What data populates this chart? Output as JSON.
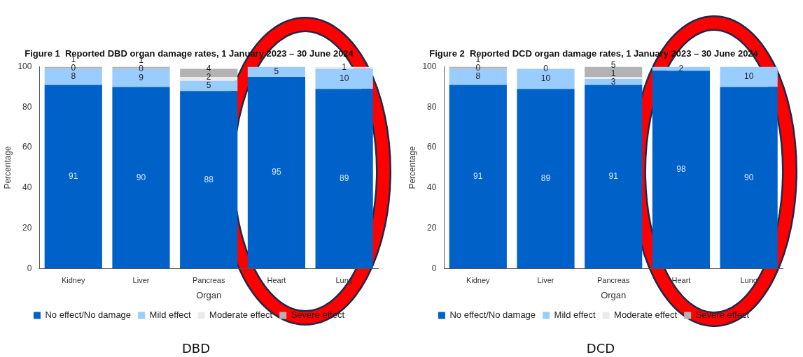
{
  "chart_data": [
    {
      "type": "bar",
      "title": "Figure 1  Reported DBD organ damage rates, 1 January 2023 – 30 June 2024",
      "xlabel": "Organ",
      "ylabel": "Percentage",
      "categories": [
        "Kidney",
        "Liver",
        "Pancreas",
        "Heart",
        "Lung"
      ],
      "stacked": true,
      "ylim": [
        0,
        100
      ],
      "yticks": [
        0,
        20,
        40,
        60,
        80,
        100
      ],
      "legend": "bottom",
      "annotations": [
        "DBD"
      ],
      "series": [
        {
          "name": "No effect/No damage",
          "color": "#0062c9",
          "values": [
            91,
            90,
            88,
            95,
            89
          ],
          "value_labels": [
            "91",
            "90",
            "88",
            "95",
            "89"
          ]
        },
        {
          "name": "Mild effect",
          "color": "#99ccff",
          "values": [
            8,
            9,
            5,
            5,
            10
          ],
          "value_labels": [
            "8",
            "9",
            "5",
            "5",
            "10"
          ]
        },
        {
          "name": "Moderate effect",
          "color": "#ebebeb",
          "values": [
            0,
            0,
            2,
            0,
            1
          ],
          "value_labels": [
            "0",
            "0",
            "2",
            null,
            "1"
          ]
        },
        {
          "name": "Severe effect",
          "color": "#b3b3b3",
          "values": [
            1,
            1,
            4,
            0,
            0
          ],
          "value_labels": [
            "1",
            "1",
            "4",
            null,
            null
          ]
        }
      ]
    },
    {
      "type": "bar",
      "title": "Figure 2  Reported DCD organ damage rates, 1 January 2023 – 30 June 2024",
      "xlabel": "Organ",
      "ylabel": "Percentage",
      "categories": [
        "Kidney",
        "Liver",
        "Pancreas",
        "Heart",
        "Lung"
      ],
      "stacked": true,
      "ylim": [
        0,
        100
      ],
      "yticks": [
        0,
        20,
        40,
        60,
        80,
        100
      ],
      "legend": "bottom",
      "annotations": [
        "DCD"
      ],
      "series": [
        {
          "name": "No effect/No damage",
          "color": "#0062c9",
          "values": [
            91,
            89,
            91,
            98,
            90
          ],
          "value_labels": [
            "91",
            "89",
            "91",
            "98",
            "90"
          ]
        },
        {
          "name": "Mild effect",
          "color": "#99ccff",
          "values": [
            8,
            10,
            3,
            2,
            10
          ],
          "value_labels": [
            "8",
            "10",
            "3",
            "2",
            "10"
          ]
        },
        {
          "name": "Moderate effect",
          "color": "#ebebeb",
          "values": [
            0,
            0,
            1,
            0,
            0
          ],
          "value_labels": [
            "0",
            "0",
            "1",
            null,
            null
          ]
        },
        {
          "name": "Severe effect",
          "color": "#b3b3b3",
          "values": [
            1,
            0,
            5,
            0,
            0
          ],
          "value_labels": [
            "1",
            null,
            "5",
            null,
            null
          ]
        }
      ]
    }
  ]
}
